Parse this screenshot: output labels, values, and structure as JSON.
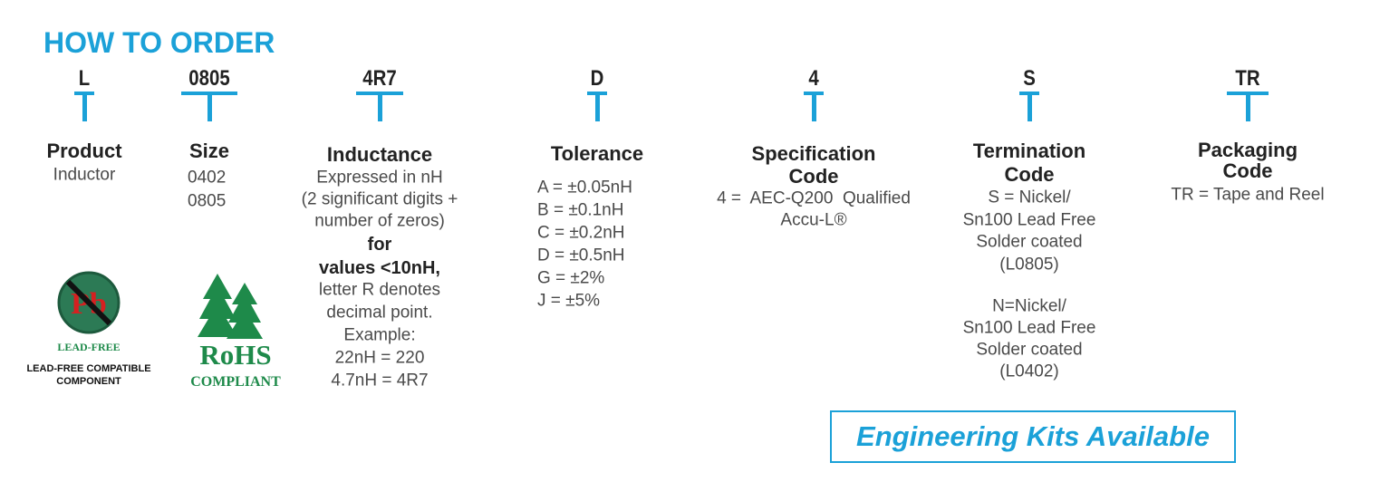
{
  "header": {
    "title": "HOW TO ORDER"
  },
  "fields": [
    {
      "code": "L",
      "heading": [
        "Product"
      ],
      "lines": [
        "Inductor"
      ]
    },
    {
      "code": "0805",
      "heading": [
        "Size"
      ],
      "lines": [
        "0402",
        "0805"
      ]
    },
    {
      "code": "4R7",
      "heading": [
        "Inductance"
      ],
      "lines": [
        "Expressed in nH",
        "(2 significant digits +",
        "number of zeros)",
        "for",
        "values <10nH,",
        "letter R denotes",
        "decimal point.",
        "Example:",
        "22nH = 220",
        "4.7nH = 4R7"
      ]
    },
    {
      "code": "D",
      "heading": [
        "Tolerance"
      ],
      "lines": [
        "A = ±0.05nH",
        "B = ±0.1nH",
        "C = ±0.2nH",
        "D = ±0.5nH",
        "G = ±2%",
        "J = ±5%"
      ]
    },
    {
      "code": "4",
      "heading": [
        "Specification",
        "Code"
      ],
      "lines": [
        "4 =  AEC-Q200  Qualified",
        "Accu-L®"
      ]
    },
    {
      "code": "S",
      "heading": [
        "Termination",
        "Code"
      ],
      "lines": [
        "S = Nickel/",
        "Sn100 Lead Free",
        "Solder coated",
        "(L0805)",
        "N=Nickel/",
        "Sn100 Lead Free",
        "Solder coated",
        "(L0402)"
      ]
    },
    {
      "code": "TR",
      "heading": [
        "Packaging",
        "Code"
      ],
      "lines": [
        "TR = Tape and Reel"
      ]
    }
  ],
  "badges": {
    "lead_free": {
      "symbol": "Pb",
      "label": "LEAD-FREE",
      "caption": [
        "LEAD-FREE COMPATIBLE",
        "COMPONENT"
      ]
    },
    "rohs": {
      "label": "RoHS",
      "caption": "COMPLIANT"
    }
  },
  "footer": {
    "button": "Engineering Kits Available"
  }
}
